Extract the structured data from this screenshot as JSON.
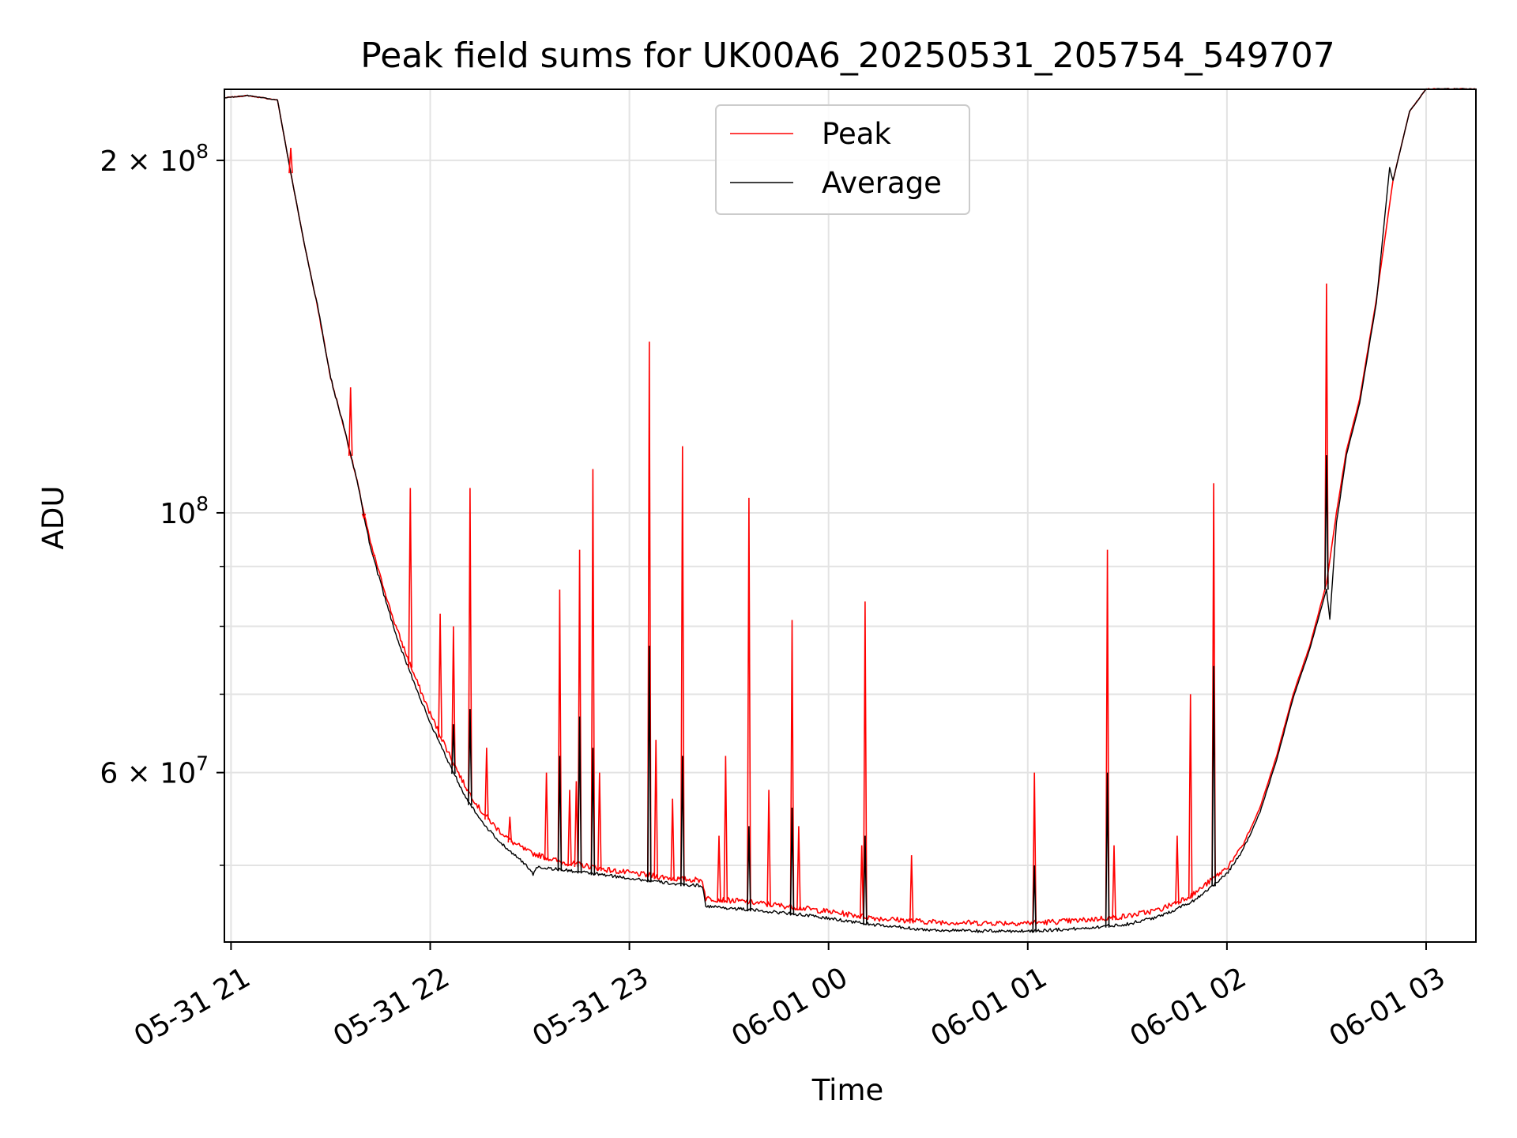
{
  "chart_data": {
    "type": "line",
    "title": "Peak field sums for UK00A6_20250531_205754_549707",
    "xlabel": "Time",
    "ylabel": "ADU",
    "y_scale": "log",
    "ylim": [
      43000000,
      230000000
    ],
    "xlim": [
      "2025-05-31 20:58",
      "2025-06-01 03:15"
    ],
    "grid": true,
    "legend_position": "top-center",
    "x_ticks": [
      {
        "t": "2025-05-31 21:00",
        "label": "05-31 21"
      },
      {
        "t": "2025-05-31 22:00",
        "label": "05-31 22"
      },
      {
        "t": "2025-05-31 23:00",
        "label": "05-31 23"
      },
      {
        "t": "2025-06-01 00:00",
        "label": "06-01 00"
      },
      {
        "t": "2025-06-01 01:00",
        "label": "06-01 01"
      },
      {
        "t": "2025-06-01 02:00",
        "label": "06-01 02"
      },
      {
        "t": "2025-06-01 03:00",
        "label": "06-01 03"
      }
    ],
    "y_ticks": [
      {
        "v": 60000000,
        "label": "6 × 10",
        "exp": "7"
      },
      {
        "v": 100000000,
        "label": "10",
        "exp": "8"
      },
      {
        "v": 200000000,
        "label": "2 × 10",
        "exp": "8"
      }
    ],
    "y_minor_ticks": [
      50000000,
      70000000,
      80000000,
      90000000
    ],
    "series": [
      {
        "name": "Peak",
        "color": "#ff0000",
        "points": [
          [
            "2025-05-31 20:58",
            226000000
          ],
          [
            "2025-05-31 21:05",
            227000000
          ],
          [
            "2025-05-31 21:14",
            225000000
          ],
          [
            "2025-05-31 21:18",
            195000000
          ],
          [
            "2025-05-31 21:22",
            170000000
          ],
          [
            "2025-05-31 21:26",
            150000000
          ],
          [
            "2025-05-31 21:30",
            130000000
          ],
          [
            "2025-05-31 21:34",
            118000000
          ],
          [
            "2025-05-31 21:38",
            106000000
          ],
          [
            "2025-05-31 21:42",
            94000000
          ],
          [
            "2025-05-31 21:46",
            86000000
          ],
          [
            "2025-05-31 21:50",
            79000000
          ],
          [
            "2025-05-31 21:55",
            72500000
          ],
          [
            "2025-05-31 22:00",
            67000000
          ],
          [
            "2025-05-31 22:05",
            62500000
          ],
          [
            "2025-05-31 22:10",
            58500000
          ],
          [
            "2025-05-31 22:15",
            55500000
          ],
          [
            "2025-05-31 22:20",
            53500000
          ],
          [
            "2025-05-31 22:25",
            52000000
          ],
          [
            "2025-05-31 22:30",
            51000000
          ],
          [
            "2025-05-31 22:35",
            50500000
          ],
          [
            "2025-05-31 22:40",
            50000000
          ],
          [
            "2025-05-31 22:45",
            49800000
          ],
          [
            "2025-05-31 22:50",
            49500000
          ],
          [
            "2025-05-31 22:55",
            49200000
          ],
          [
            "2025-05-31 23:00",
            49000000
          ],
          [
            "2025-05-31 23:10",
            48600000
          ],
          [
            "2025-05-31 23:15",
            48400000
          ],
          [
            "2025-05-31 23:22",
            48300000
          ],
          [
            "2025-05-31 23:23",
            46600000
          ],
          [
            "2025-05-31 23:35",
            46300000
          ],
          [
            "2025-05-31 23:50",
            45800000
          ],
          [
            "2025-06-01 00:00",
            45400000
          ],
          [
            "2025-06-01 00:15",
            44800000
          ],
          [
            "2025-06-01 00:30",
            44500000
          ],
          [
            "2025-06-01 00:45",
            44400000
          ],
          [
            "2025-06-01 01:00",
            44400000
          ],
          [
            "2025-06-01 01:15",
            44600000
          ],
          [
            "2025-06-01 01:30",
            45000000
          ],
          [
            "2025-06-01 01:40",
            45600000
          ],
          [
            "2025-06-01 01:50",
            47000000
          ],
          [
            "2025-06-01 02:00",
            49500000
          ],
          [
            "2025-06-01 02:05",
            52000000
          ],
          [
            "2025-06-01 02:10",
            56000000
          ],
          [
            "2025-06-01 02:15",
            62000000
          ],
          [
            "2025-06-01 02:20",
            70000000
          ],
          [
            "2025-06-01 02:25",
            77000000
          ],
          [
            "2025-06-01 02:30",
            87000000
          ],
          [
            "2025-06-01 02:33",
            100000000
          ],
          [
            "2025-06-01 02:36",
            113000000
          ],
          [
            "2025-06-01 02:40",
            125000000
          ],
          [
            "2025-06-01 02:45",
            152000000
          ],
          [
            "2025-06-01 02:50",
            192000000
          ],
          [
            "2025-06-01 02:55",
            220000000
          ],
          [
            "2025-06-01 03:00",
            230000000
          ],
          [
            "2025-06-01 03:15",
            230000000
          ]
        ],
        "spikes": [
          [
            "2025-05-31 21:18",
            205000000
          ],
          [
            "2025-05-31 21:36",
            128000000
          ],
          [
            "2025-05-31 21:40",
            99000000
          ],
          [
            "2025-05-31 21:43",
            92000000
          ],
          [
            "2025-05-31 21:54",
            105000000
          ],
          [
            "2025-05-31 22:03",
            82000000
          ],
          [
            "2025-05-31 22:07",
            80000000
          ],
          [
            "2025-05-31 22:12",
            105000000
          ],
          [
            "2025-05-31 22:17",
            63000000
          ],
          [
            "2025-05-31 22:24",
            55000000
          ],
          [
            "2025-05-31 22:35",
            60000000
          ],
          [
            "2025-05-31 22:39",
            86000000
          ],
          [
            "2025-05-31 22:42",
            58000000
          ],
          [
            "2025-05-31 22:44",
            59000000
          ],
          [
            "2025-05-31 22:45",
            93000000
          ],
          [
            "2025-05-31 22:49",
            109000000
          ],
          [
            "2025-05-31 22:51",
            60000000
          ],
          [
            "2025-05-31 23:06",
            140000000
          ],
          [
            "2025-05-31 23:08",
            64000000
          ],
          [
            "2025-05-31 23:13",
            57000000
          ],
          [
            "2025-05-31 23:16",
            114000000
          ],
          [
            "2025-05-31 23:27",
            53000000
          ],
          [
            "2025-05-31 23:29",
            62000000
          ],
          [
            "2025-05-31 23:36",
            103000000
          ],
          [
            "2025-05-31 23:42",
            58000000
          ],
          [
            "2025-05-31 23:49",
            81000000
          ],
          [
            "2025-05-31 23:51",
            54000000
          ],
          [
            "2025-06-01 00:10",
            52000000
          ],
          [
            "2025-06-01 00:11",
            84000000
          ],
          [
            "2025-06-01 00:25",
            51000000
          ],
          [
            "2025-06-01 01:02",
            60000000
          ],
          [
            "2025-06-01 01:24",
            93000000
          ],
          [
            "2025-06-01 01:26",
            52000000
          ],
          [
            "2025-06-01 01:45",
            53000000
          ],
          [
            "2025-06-01 01:49",
            70000000
          ],
          [
            "2025-06-01 01:56",
            106000000
          ],
          [
            "2025-06-01 02:30",
            157000000
          ]
        ]
      },
      {
        "name": "Average",
        "color": "#000000",
        "points": [
          [
            "2025-05-31 20:58",
            226000000
          ],
          [
            "2025-05-31 21:05",
            227000000
          ],
          [
            "2025-05-31 21:14",
            225000000
          ],
          [
            "2025-05-31 21:18",
            195000000
          ],
          [
            "2025-05-31 21:22",
            170000000
          ],
          [
            "2025-05-31 21:26",
            150000000
          ],
          [
            "2025-05-31 21:30",
            130000000
          ],
          [
            "2025-05-31 21:34",
            118000000
          ],
          [
            "2025-05-31 21:38",
            106000000
          ],
          [
            "2025-05-31 21:42",
            93000000
          ],
          [
            "2025-05-31 21:46",
            85000000
          ],
          [
            "2025-05-31 21:50",
            78000000
          ],
          [
            "2025-05-31 21:55",
            71500000
          ],
          [
            "2025-05-31 22:00",
            66000000
          ],
          [
            "2025-05-31 22:05",
            61500000
          ],
          [
            "2025-05-31 22:10",
            57500000
          ],
          [
            "2025-05-31 22:15",
            54500000
          ],
          [
            "2025-05-31 22:20",
            52500000
          ],
          [
            "2025-05-31 22:25",
            51000000
          ],
          [
            "2025-05-31 22:30",
            49500000
          ],
          [
            "2025-05-31 22:31",
            48900000
          ],
          [
            "2025-05-31 22:32",
            49700000
          ],
          [
            "2025-05-31 22:40",
            49400000
          ],
          [
            "2025-05-31 22:50",
            49000000
          ],
          [
            "2025-05-31 23:00",
            48600000
          ],
          [
            "2025-05-31 23:10",
            48200000
          ],
          [
            "2025-05-31 23:15",
            48000000
          ],
          [
            "2025-05-31 23:22",
            47900000
          ],
          [
            "2025-05-31 23:23",
            46000000
          ],
          [
            "2025-05-31 23:35",
            45700000
          ],
          [
            "2025-05-31 23:50",
            45300000
          ],
          [
            "2025-06-01 00:00",
            44900000
          ],
          [
            "2025-06-01 00:15",
            44300000
          ],
          [
            "2025-06-01 00:30",
            43900000
          ],
          [
            "2025-06-01 00:45",
            43800000
          ],
          [
            "2025-06-01 01:00",
            43800000
          ],
          [
            "2025-06-01 01:15",
            44000000
          ],
          [
            "2025-06-01 01:30",
            44400000
          ],
          [
            "2025-06-01 01:40",
            45100000
          ],
          [
            "2025-06-01 01:50",
            46500000
          ],
          [
            "2025-06-01 02:00",
            49000000
          ],
          [
            "2025-06-01 02:05",
            51500000
          ],
          [
            "2025-06-01 02:10",
            55500000
          ],
          [
            "2025-06-01 02:15",
            61500000
          ],
          [
            "2025-06-01 02:20",
            69500000
          ],
          [
            "2025-06-01 02:25",
            76500000
          ],
          [
            "2025-06-01 02:30",
            86000000
          ],
          [
            "2025-06-01 02:31",
            81000000
          ],
          [
            "2025-06-01 02:33",
            98000000
          ],
          [
            "2025-06-01 02:36",
            112000000
          ],
          [
            "2025-06-01 02:40",
            124000000
          ],
          [
            "2025-06-01 02:45",
            151000000
          ],
          [
            "2025-06-01 02:49",
            197000000
          ],
          [
            "2025-06-01 02:50",
            192000000
          ],
          [
            "2025-06-01 02:55",
            220000000
          ],
          [
            "2025-06-01 03:00",
            230000000
          ],
          [
            "2025-06-01 03:15",
            230000000
          ]
        ],
        "spikes": [
          [
            "2025-05-31 22:12",
            68000000
          ],
          [
            "2025-05-31 22:07",
            66000000
          ],
          [
            "2025-05-31 22:39",
            62000000
          ],
          [
            "2025-05-31 22:45",
            67000000
          ],
          [
            "2025-05-31 22:49",
            63000000
          ],
          [
            "2025-05-31 23:06",
            77000000
          ],
          [
            "2025-05-31 23:16",
            62000000
          ],
          [
            "2025-05-31 23:36",
            54000000
          ],
          [
            "2025-05-31 23:49",
            56000000
          ],
          [
            "2025-06-01 00:11",
            53000000
          ],
          [
            "2025-06-01 01:02",
            50000000
          ],
          [
            "2025-06-01 01:24",
            60000000
          ],
          [
            "2025-06-01 01:56",
            74000000
          ],
          [
            "2025-06-01 02:30",
            112000000
          ]
        ]
      }
    ]
  }
}
